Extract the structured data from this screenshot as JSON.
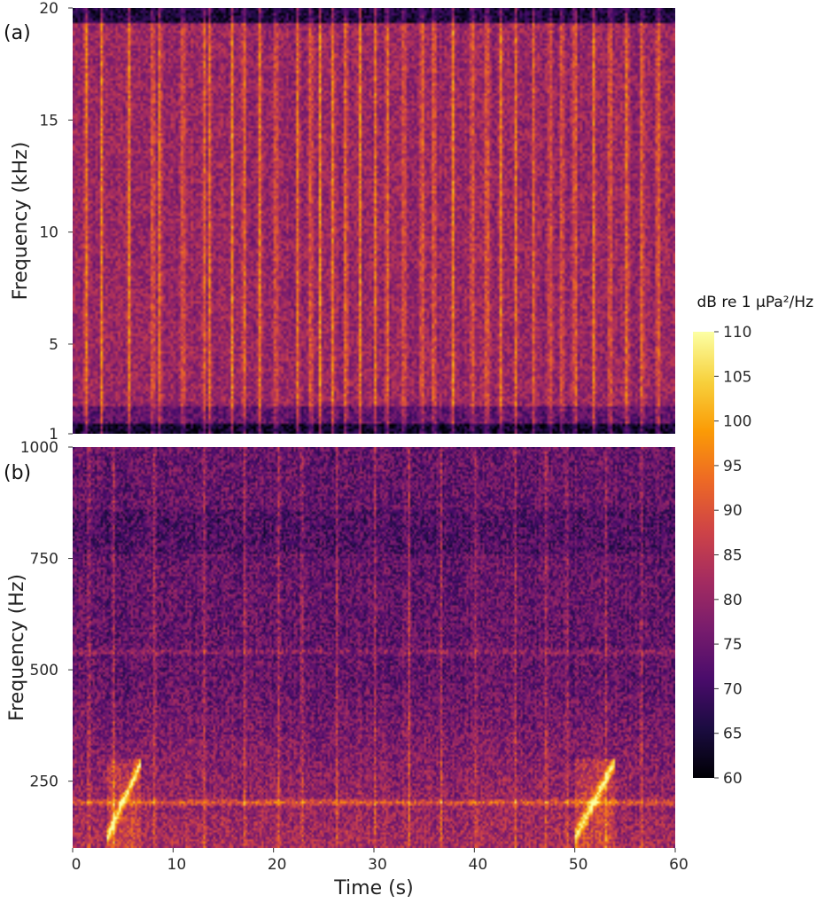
{
  "chart_data": [
    {
      "panel_label": "(a)",
      "type": "heatmap",
      "title": "",
      "xlabel": "",
      "ylabel": "Frequency (kHz)",
      "xlim": [
        0,
        60
      ],
      "ylim": [
        1,
        20
      ],
      "y_ticks": [
        1,
        5,
        10,
        15,
        20
      ],
      "y_tick_labels": [
        "1",
        "5",
        "10",
        "15",
        "20"
      ],
      "colormap": "inferno",
      "transients_s": [
        1.2,
        2.8,
        5.5,
        7.9,
        8.6,
        10.9,
        13.0,
        13.6,
        15.8,
        17.0,
        18.6,
        20.2,
        22.4,
        23.7,
        24.6,
        25.9,
        27.2,
        28.6,
        30.1,
        31.3,
        33.0,
        34.8,
        36.0,
        37.9,
        39.8,
        41.3,
        42.7,
        44.2,
        46.0,
        47.6,
        48.8,
        50.1,
        52.0,
        53.6,
        55.3,
        56.8,
        58.4
      ]
    },
    {
      "panel_label": "(b)",
      "type": "heatmap",
      "title": "",
      "xlabel": "Time (s)",
      "ylabel": "Frequency (Hz)",
      "xlim": [
        0,
        60
      ],
      "ylim": [
        100,
        1000
      ],
      "x_ticks": [
        0,
        10,
        20,
        30,
        40,
        50,
        60
      ],
      "x_tick_labels": [
        "0",
        "10",
        "20",
        "30",
        "40",
        "50",
        "60"
      ],
      "y_ticks": [
        250,
        500,
        750,
        1000
      ],
      "y_tick_labels": [
        "250",
        "500",
        "750",
        "1000"
      ],
      "colormap": "inferno",
      "tonal_lines_hz": [
        200,
        540
      ],
      "calls_s": [
        [
          3.3,
          6.7
        ],
        [
          50.1,
          54.0
        ]
      ],
      "transients_s": [
        1.5,
        4.0,
        8.1,
        13.0,
        17.1,
        20.5,
        22.8,
        26.3,
        30.1,
        33.5,
        36.7,
        40.2,
        44.1,
        47.2,
        49.3,
        53.2,
        56.7
      ]
    }
  ],
  "colorbar": {
    "title": "dB re 1 μPa²/Hz",
    "min": 60,
    "max": 110,
    "ticks": [
      60,
      65,
      70,
      75,
      80,
      85,
      90,
      95,
      100,
      105,
      110
    ],
    "tick_labels": [
      "60",
      "65",
      "70",
      "75",
      "80",
      "85",
      "90",
      "95",
      "100",
      "105",
      "110"
    ],
    "colors": [
      "#000004",
      "#1b0c41",
      "#4a0c6b",
      "#781c6d",
      "#a52c60",
      "#cf4446",
      "#ed6925",
      "#fb9b06",
      "#f7d13d",
      "#fcffa4"
    ]
  }
}
